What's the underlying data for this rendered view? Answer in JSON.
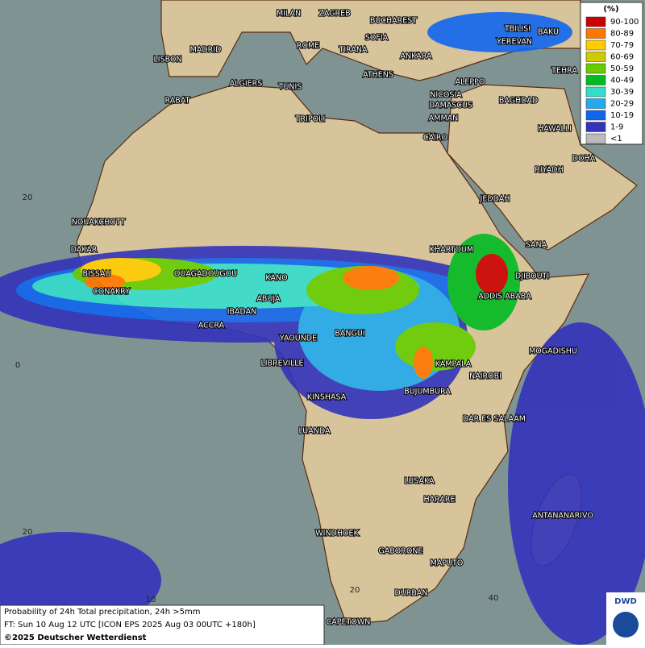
{
  "map": {
    "cities": [
      "MILAN",
      "ZAGREB",
      "BUCHAREST",
      "TBILISI",
      "BAKU",
      "SOFIA",
      "ROME",
      "TIRANA",
      "YEREVAN",
      "MADRID",
      "ANKARA",
      "LISBON",
      "TEHRA",
      "ATHENS",
      "ALGIERS",
      "TUNIS",
      "ALEPPO",
      "RABAT",
      "NICOSIA",
      "BAGHDAD",
      "DAMASCUS",
      "AMMAN",
      "TRIPOLI",
      "HAWALLI",
      "CAIRO",
      "DOHA",
      "RIYADH",
      "JEDDAH",
      "NOUAKCHOTT",
      "SANA",
      "DAKAR",
      "KHARTOUM",
      "BISSAU",
      "OUAGADOUGOU",
      "DJIBOUTI",
      "KANO",
      "CONAKRY",
      "ABUJA",
      "ADDIS ABABA",
      "IBADAN",
      "ACCRA",
      "BANGUI",
      "YAOUNDE",
      "MOGADISHU",
      "LIBREVILLE",
      "KAMPALA",
      "NAIROBI",
      "KINSHASA",
      "BUJUMBURA",
      "DAR ES SALAAM",
      "LUANDA",
      "LUSAKA",
      "HARARE",
      "ANTANANARIVO",
      "WINDHOEK",
      "GABORONE",
      "MAPUTO",
      "DURBAN",
      "CAPETOWN"
    ],
    "grid_labels": [
      "20",
      "0",
      "20",
      "10",
      "20",
      "40"
    ]
  },
  "legend": {
    "title": "(%)",
    "items": [
      {
        "label": "90-100",
        "color": "#cc0000"
      },
      {
        "label": "80-89",
        "color": "#ff7700"
      },
      {
        "label": "70-79",
        "color": "#ffcc00"
      },
      {
        "label": "60-69",
        "color": "#cccc00"
      },
      {
        "label": "50-59",
        "color": "#66cc00"
      },
      {
        "label": "40-49",
        "color": "#00bb22"
      },
      {
        "label": "30-39",
        "color": "#33ddcc"
      },
      {
        "label": "20-29",
        "color": "#22aaee"
      },
      {
        "label": "10-19",
        "color": "#1166ee"
      },
      {
        "label": "1-9",
        "color": "#3333bb"
      },
      {
        "label": "<1",
        "color": "#bbbbbb"
      }
    ]
  },
  "caption": {
    "lines": [
      "Probability of 24h Total precipitation, 24h >5mm",
      "FT: Sun 10 Aug 12 UTC [ICON EPS 2025 Aug 03 00UTC +180h]",
      "©2025 Deutscher Wetterdienst"
    ]
  },
  "logo": "DWD"
}
